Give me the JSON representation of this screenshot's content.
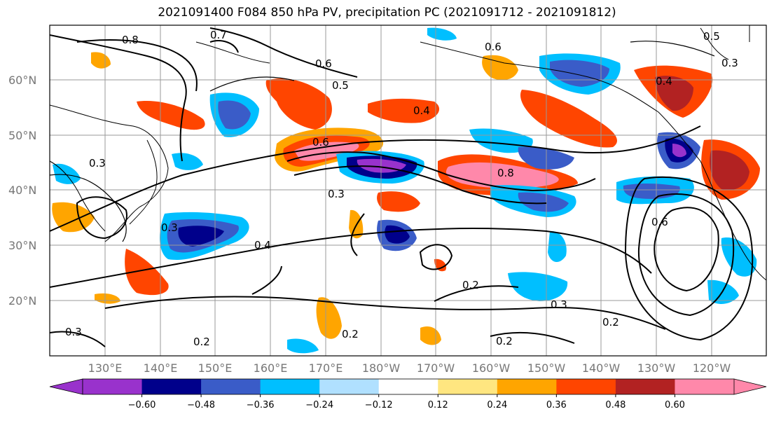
{
  "title": "2021091400 F084 850 hPa PV, precipitation PC (2021091712 - 2021091812)",
  "lat_labels": [
    {
      "label": "60°N",
      "lat": 60
    },
    {
      "label": "50°N",
      "lat": 50
    },
    {
      "label": "40°N",
      "lat": 40
    },
    {
      "label": "30°N",
      "lat": 30
    },
    {
      "label": "20°N",
      "lat": 20
    }
  ],
  "lon_labels": [
    {
      "label": "130°E",
      "lon": 130
    },
    {
      "label": "140°E",
      "lon": 140
    },
    {
      "label": "150°E",
      "lon": 150
    },
    {
      "label": "160°E",
      "lon": 160
    },
    {
      "label": "170°E",
      "lon": 170
    },
    {
      "label": "180°W",
      "lon": 180
    },
    {
      "label": "170°W",
      "lon": 190
    },
    {
      "label": "160°W",
      "lon": 200
    },
    {
      "label": "150°W",
      "lon": 210
    },
    {
      "label": "140°W",
      "lon": 220
    },
    {
      "label": "130°W",
      "lon": 230
    },
    {
      "label": "120°W",
      "lon": 240
    }
  ],
  "colorbar": {
    "colors": [
      "#9932cc",
      "#00008b",
      "#3a5cc8",
      "#00bfff",
      "#87ceeb",
      "#b0e0ff",
      "#ffffff",
      "#ffe680",
      "#ffa500",
      "#ff4500",
      "#b22222",
      "#ff88aa",
      "#ff88aa"
    ],
    "bins": [
      "#9932cc",
      "#00008b",
      "#3a5cc8",
      "#00bfff",
      "#b0e0ff",
      "#ffffff",
      "#ffe680",
      "#ffa500",
      "#ff4500",
      "#b22222",
      "#ff88aa"
    ],
    "ticks": [
      "−0.60",
      "−0.48",
      "−0.36",
      "−0.24",
      "−0.12",
      "0.12",
      "0.24",
      "0.36",
      "0.48",
      "0.60"
    ]
  },
  "contour_labels": [
    "0.8",
    "0.7",
    "0.6",
    "0.5",
    "0.4",
    "0.3",
    "0.2"
  ],
  "colors": {
    "neg_strong": "#00008b",
    "neg_mid": "#3a5cc8",
    "neg_light": "#00bfff",
    "neg_pale": "#b0e0ff",
    "pos_pale": "#ffe680",
    "pos_light": "#ffa500",
    "pos_mid": "#ff4500",
    "pos_strong": "#b22222",
    "pos_max": "#ff88aa",
    "neg_max": "#9932cc"
  }
}
